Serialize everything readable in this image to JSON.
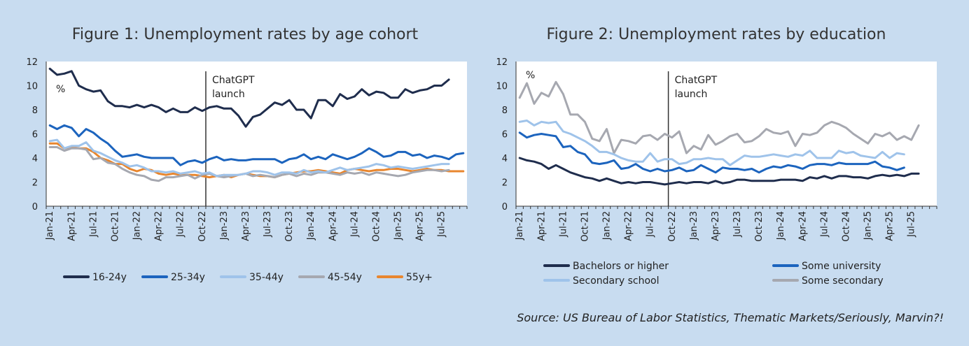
{
  "source": "Source: US Bureau of Labor Statistics, Thematic Markets/Seriously, Marvin?!",
  "chart_data": [
    {
      "type": "line",
      "title": "Figure 1: Unemployment rates by age cohort",
      "unit_label": "%",
      "ylim": [
        0,
        12
      ],
      "yticks": [
        "0",
        "2",
        "4",
        "6",
        "8",
        "10",
        "12"
      ],
      "xtick_labels": [
        "Jan-21",
        "Apr-21",
        "Jul-21",
        "Oct-21",
        "Jan-22",
        "Apr-22",
        "Jul-22",
        "Oct-22",
        "Jan-23",
        "Apr-23",
        "Jul-23",
        "Oct-23",
        "Jan-24",
        "Apr-24",
        "Jul-24",
        "Oct-24",
        "Jan-25",
        "Apr-25",
        "Jul-25"
      ],
      "annotation": {
        "line1": "ChatGPT",
        "line2": "launch",
        "x_index": 22
      },
      "legend_position": "bottom",
      "series": [
        {
          "name": "16-24y",
          "color": "#1f2d4d",
          "values": [
            11.4,
            10.9,
            11.0,
            11.2,
            10.0,
            9.7,
            9.5,
            9.6,
            8.7,
            8.3,
            8.3,
            8.2,
            8.4,
            8.2,
            8.4,
            8.2,
            7.8,
            8.1,
            7.8,
            7.8,
            8.2,
            7.9,
            8.2,
            8.3,
            8.1,
            8.1,
            7.5,
            6.6,
            7.4,
            7.6,
            8.1,
            8.6,
            8.4,
            8.8,
            8.0,
            8.0,
            7.3,
            8.8,
            8.8,
            8.3,
            9.3,
            8.9,
            9.1,
            9.7,
            9.2,
            9.5,
            9.4,
            9.0,
            9.0,
            9.7,
            9.4,
            9.6,
            9.7,
            10.0,
            10.0,
            10.5
          ]
        },
        {
          "name": "25-34y",
          "color": "#1c64be",
          "values": [
            6.7,
            6.4,
            6.7,
            6.5,
            5.8,
            6.4,
            6.1,
            5.6,
            5.2,
            4.6,
            4.1,
            4.2,
            4.3,
            4.1,
            4.0,
            4.0,
            4.0,
            4.0,
            3.4,
            3.7,
            3.8,
            3.6,
            3.9,
            4.1,
            3.8,
            3.9,
            3.8,
            3.8,
            3.9,
            3.9,
            3.9,
            3.9,
            3.6,
            3.9,
            4.0,
            4.3,
            3.9,
            4.1,
            3.9,
            4.3,
            4.1,
            3.9,
            4.1,
            4.4,
            4.8,
            4.5,
            4.1,
            4.2,
            4.5,
            4.5,
            4.2,
            4.3,
            4.0,
            4.2,
            4.1,
            3.9,
            4.3,
            4.4
          ]
        },
        {
          "name": "35-44y",
          "color": "#9fc3ea",
          "values": [
            5.4,
            5.5,
            4.8,
            5.0,
            5.0,
            5.3,
            4.6,
            4.4,
            4.1,
            3.8,
            3.6,
            3.3,
            3.4,
            3.2,
            2.9,
            2.9,
            2.8,
            2.9,
            2.7,
            2.8,
            2.9,
            2.7,
            2.8,
            2.5,
            2.6,
            2.6,
            2.6,
            2.7,
            2.9,
            2.9,
            2.8,
            2.6,
            2.8,
            2.8,
            2.7,
            3.0,
            2.8,
            2.9,
            2.8,
            3.0,
            3.2,
            3.0,
            3.1,
            3.2,
            3.3,
            3.5,
            3.4,
            3.2,
            3.3,
            3.2,
            3.1,
            3.2,
            3.3,
            3.4,
            3.5,
            3.5
          ]
        },
        {
          "name": "45-54y",
          "color": "#a6a8b0",
          "values": [
            4.9,
            4.9,
            4.6,
            4.8,
            4.8,
            4.7,
            3.9,
            4.0,
            3.6,
            3.5,
            3.1,
            2.8,
            2.6,
            2.5,
            2.2,
            2.1,
            2.4,
            2.4,
            2.5,
            2.6,
            2.3,
            2.6,
            2.7,
            2.5,
            2.4,
            2.5,
            2.6,
            2.7,
            2.5,
            2.6,
            2.5,
            2.4,
            2.6,
            2.7,
            2.5,
            2.7,
            2.6,
            2.8,
            2.8,
            2.7,
            2.6,
            2.8,
            2.7,
            2.8,
            2.6,
            2.8,
            2.7,
            2.6,
            2.5,
            2.6,
            2.8,
            2.9,
            3.0,
            3.0,
            2.9,
            3.0
          ]
        },
        {
          "name": "55y+",
          "color": "#e8862e",
          "values": [
            5.2,
            5.2,
            4.8,
            4.9,
            4.8,
            4.8,
            4.5,
            4.0,
            3.8,
            3.5,
            3.5,
            3.1,
            2.9,
            3.1,
            3.0,
            2.7,
            2.6,
            2.7,
            2.6,
            2.6,
            2.6,
            2.5,
            2.4,
            2.5,
            2.6,
            2.4,
            2.6,
            2.7,
            2.6,
            2.5,
            2.5,
            2.4,
            2.6,
            2.7,
            2.8,
            2.9,
            2.9,
            3.0,
            2.9,
            2.8,
            2.7,
            3.0,
            3.1,
            3.0,
            2.9,
            3.0,
            3.0,
            3.1,
            3.1,
            3.0,
            2.9,
            3.0,
            3.1,
            3.0,
            3.0,
            2.9,
            2.9,
            2.9
          ]
        }
      ]
    },
    {
      "type": "line",
      "title": "Figure 2: Unemployment rates by education",
      "unit_label": "%",
      "ylim": [
        0,
        12
      ],
      "yticks": [
        "0",
        "2",
        "4",
        "6",
        "8",
        "10",
        "12"
      ],
      "xtick_labels": [
        "Jan-21",
        "Apr-21",
        "Jul-21",
        "Oct-21",
        "Jan-22",
        "Apr-22",
        "Jul-22",
        "Oct-22",
        "Jan-23",
        "Apr-23",
        "Jul-23",
        "Oct-23",
        "Jan-24",
        "Apr-24",
        "Jul-24",
        "Oct-24",
        "Jan-25",
        "Apr-25",
        "Jul-25"
      ],
      "annotation": {
        "line1": "ChatGPT",
        "line2": "launch",
        "x_index": 21
      },
      "legend_position": "bottom",
      "series": [
        {
          "name": "Bachelors or higher",
          "color": "#1f2d4d",
          "values": [
            4.0,
            3.8,
            3.7,
            3.5,
            3.1,
            3.4,
            3.1,
            2.8,
            2.6,
            2.4,
            2.3,
            2.1,
            2.3,
            2.1,
            1.9,
            2.0,
            1.9,
            2.0,
            2.0,
            1.9,
            1.8,
            1.9,
            2.0,
            1.9,
            2.0,
            2.0,
            1.9,
            2.1,
            1.9,
            2.0,
            2.2,
            2.2,
            2.1,
            2.1,
            2.1,
            2.1,
            2.2,
            2.2,
            2.2,
            2.1,
            2.4,
            2.3,
            2.5,
            2.3,
            2.5,
            2.5,
            2.4,
            2.4,
            2.3,
            2.5,
            2.6,
            2.5,
            2.6,
            2.5,
            2.7,
            2.7
          ]
        },
        {
          "name": "Some university",
          "color": "#1c64be",
          "values": [
            6.1,
            5.7,
            5.9,
            6.0,
            5.9,
            5.8,
            4.9,
            5.0,
            4.5,
            4.3,
            3.6,
            3.5,
            3.6,
            3.8,
            3.1,
            3.2,
            3.5,
            3.1,
            2.9,
            3.1,
            2.9,
            3.0,
            3.2,
            2.9,
            3.0,
            3.4,
            3.1,
            2.8,
            3.2,
            3.1,
            3.1,
            3.0,
            3.1,
            2.8,
            3.1,
            3.3,
            3.2,
            3.4,
            3.3,
            3.1,
            3.4,
            3.5,
            3.5,
            3.4,
            3.6,
            3.5,
            3.5,
            3.5,
            3.5,
            3.7,
            3.3,
            3.2,
            3.0,
            3.2
          ]
        },
        {
          "name": "Secondary school",
          "color": "#9fc3ea",
          "values": [
            7.0,
            7.1,
            6.7,
            7.0,
            6.9,
            7.0,
            6.2,
            6.0,
            5.7,
            5.4,
            5.0,
            4.5,
            4.5,
            4.3,
            4.0,
            3.8,
            3.7,
            3.7,
            4.4,
            3.7,
            3.9,
            3.9,
            3.5,
            3.6,
            3.9,
            3.9,
            4.0,
            3.9,
            3.9,
            3.4,
            3.8,
            4.2,
            4.1,
            4.1,
            4.2,
            4.3,
            4.2,
            4.1,
            4.3,
            4.2,
            4.6,
            4.0,
            4.0,
            4.0,
            4.6,
            4.4,
            4.5,
            4.2,
            4.1,
            4.0,
            4.5,
            4.0,
            4.4,
            4.3
          ]
        },
        {
          "name": "Some secondary",
          "color": "#a6a8b0",
          "values": [
            9.0,
            10.2,
            8.5,
            9.4,
            9.1,
            10.3,
            9.3,
            7.6,
            7.6,
            7.0,
            5.6,
            5.4,
            6.4,
            4.4,
            5.5,
            5.4,
            5.2,
            5.8,
            5.9,
            5.5,
            6.0,
            5.7,
            6.2,
            4.4,
            5.0,
            4.7,
            5.9,
            5.1,
            5.4,
            5.8,
            6.0,
            5.3,
            5.4,
            5.8,
            6.4,
            6.1,
            6.0,
            6.2,
            5.0,
            6.0,
            5.9,
            6.1,
            6.7,
            7.0,
            6.8,
            6.5,
            6.0,
            5.6,
            5.2,
            6.0,
            5.8,
            6.1,
            5.5,
            5.8,
            5.5,
            6.7
          ]
        }
      ]
    }
  ]
}
